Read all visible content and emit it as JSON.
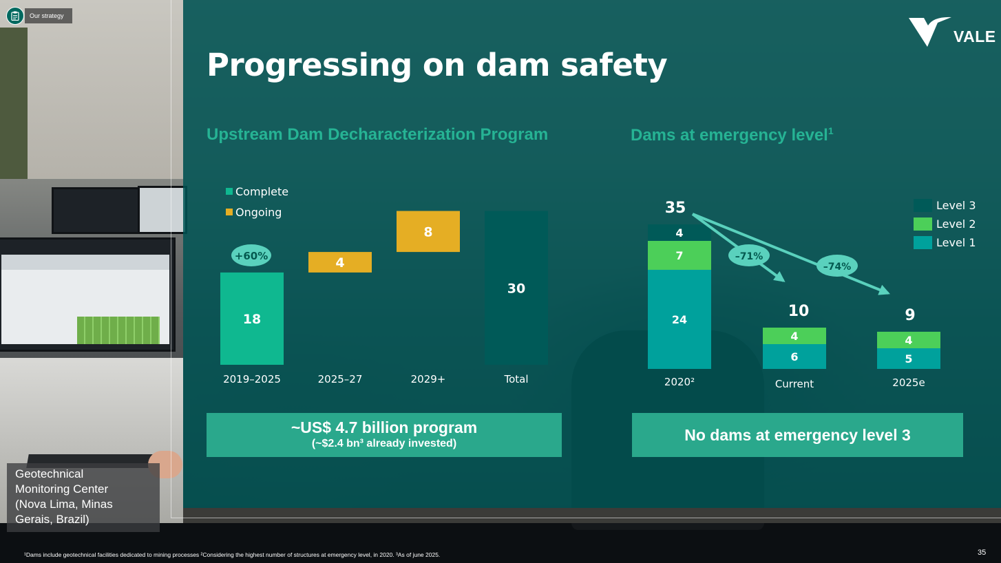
{
  "header": {
    "section_label": "Our strategy",
    "logo_text": "VALE",
    "title": "Progressing on dam safety"
  },
  "colors": {
    "complete": "#0fb890",
    "ongoing": "#e5ae24",
    "total": "#005a58",
    "level1": "#00a19c",
    "level2": "#4ccf59",
    "level3": "#005a58",
    "subtitle": "#26b394",
    "banner": "#2aa88c",
    "pill": "#5ad1bd"
  },
  "chart_data": [
    {
      "type": "bar",
      "subtitle": "Upstream Dam Decharacterization Program",
      "legend": [
        "Complete",
        "Ongoing"
      ],
      "legend_position": "top-left",
      "categories": [
        "2019–2025",
        "2025–27",
        "2029+",
        "Total"
      ],
      "bars": [
        {
          "category": "2019–2025",
          "status": "Complete",
          "base": 0,
          "value": 18,
          "label": "18"
        },
        {
          "category": "2025–27",
          "status": "Ongoing",
          "base": 18,
          "value": 4,
          "label": "4"
        },
        {
          "category": "2029+",
          "status": "Ongoing",
          "base": 22,
          "value": 8,
          "label": "8"
        },
        {
          "category": "Total",
          "status": "Total",
          "base": 0,
          "value": 30,
          "label": "30"
        }
      ],
      "annotation": "+60%"
    },
    {
      "type": "bar",
      "subtitle": "Dams at emergency level",
      "subtitle_sup": "1",
      "legend": [
        "Level 3",
        "Level 2",
        "Level 1"
      ],
      "legend_position": "top-right",
      "categories": [
        "2020²",
        "Current",
        "2025e"
      ],
      "stacks": [
        {
          "category": "2020²",
          "total": 35,
          "level1": 24,
          "level2": 7,
          "level3": 4
        },
        {
          "category": "Current",
          "total": 10,
          "level1": 6,
          "level2": 4,
          "level3": 0
        },
        {
          "category": "2025e",
          "total": 9,
          "level1": 5,
          "level2": 4,
          "level3": 0
        }
      ],
      "arrows": [
        {
          "from": "2020²",
          "to": "Current",
          "label": "–71%"
        },
        {
          "from": "2020²",
          "to": "2025e",
          "label": "–74%"
        }
      ]
    }
  ],
  "banners": {
    "left_big": "~US$ 4.7 billion program",
    "left_small": "(~$2.4 bn³ already invested)",
    "right": "No dams at emergency level 3"
  },
  "caption": {
    "line1": "Geotechnical",
    "line2": "Monitoring Center",
    "line3": "(Nova Lima, Minas",
    "line4": "Gerais, Brazil)"
  },
  "footnote": "¹Dams include geotechnical facilities dedicated to mining processes ²Considering the highest number of structures at emergency level, in 2020. ³As of june 2025.",
  "page_number": "35"
}
